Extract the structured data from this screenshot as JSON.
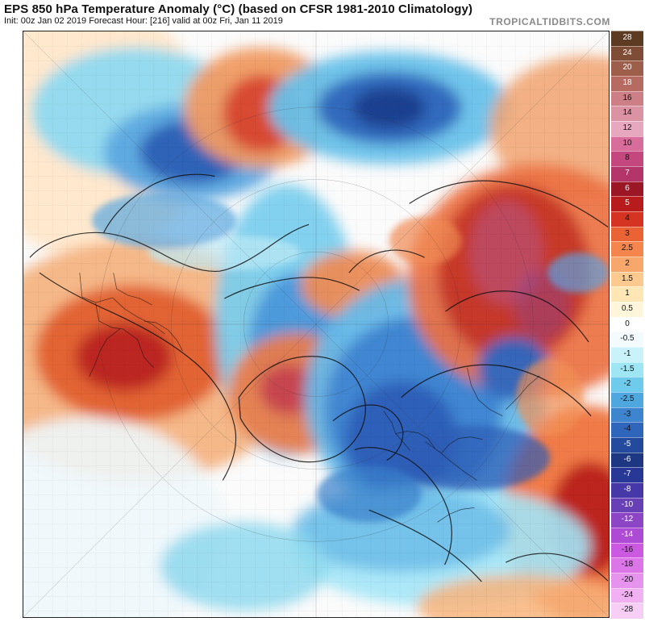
{
  "header": {
    "title": "EPS 850 hPa Temperature Anomaly (°C) (based on CFSR 1981-2010 Climatology)",
    "subtitle": "Init: 00z Jan 02 2019   Forecast Hour: [216]   valid at 00z Fri, Jan 11 2019",
    "watermark": "TROPICALTIDBITS.COM"
  },
  "legend": {
    "unit": "°C",
    "items": [
      {
        "label": "28",
        "color": "#5d3a22"
      },
      {
        "label": "24",
        "color": "#7f4d35"
      },
      {
        "label": "20",
        "color": "#9d5f4b"
      },
      {
        "label": "18",
        "color": "#b66b62"
      },
      {
        "label": "16",
        "color": "#cc7f85"
      },
      {
        "label": "14",
        "color": "#db93a4"
      },
      {
        "label": "12",
        "color": "#e7a8bf"
      },
      {
        "label": "10",
        "color": "#d86d9b"
      },
      {
        "label": "8",
        "color": "#c4487d"
      },
      {
        "label": "7",
        "color": "#b3356a"
      },
      {
        "label": "6",
        "color": "#9b1725"
      },
      {
        "label": "5",
        "color": "#b71b1c"
      },
      {
        "label": "4",
        "color": "#d53423"
      },
      {
        "label": "3",
        "color": "#ea6334"
      },
      {
        "label": "2.5",
        "color": "#f3854d"
      },
      {
        "label": "2",
        "color": "#f7a76c"
      },
      {
        "label": "1.5",
        "color": "#fcc98f"
      },
      {
        "label": "1",
        "color": "#ffe7b5"
      },
      {
        "label": "0.5",
        "color": "#fff6dc"
      },
      {
        "label": "0",
        "color": "#ffffff"
      },
      {
        "label": "-0.5",
        "color": "#f3fbff"
      },
      {
        "label": "-1",
        "color": "#c9f2fa"
      },
      {
        "label": "-1.5",
        "color": "#9ee6f4"
      },
      {
        "label": "-2",
        "color": "#6fcbec"
      },
      {
        "label": "-2.5",
        "color": "#4ea8df"
      },
      {
        "label": "-3",
        "color": "#3d86cf"
      },
      {
        "label": "-4",
        "color": "#2f65bb"
      },
      {
        "label": "-5",
        "color": "#244a9e"
      },
      {
        "label": "-6",
        "color": "#1d3782"
      },
      {
        "label": "-7",
        "color": "#283897"
      },
      {
        "label": "-8",
        "color": "#4638a6"
      },
      {
        "label": "-10",
        "color": "#6840b6"
      },
      {
        "label": "-12",
        "color": "#8b45c5"
      },
      {
        "label": "-14",
        "color": "#ad4bd4"
      },
      {
        "label": "-16",
        "color": "#cb5ae0"
      },
      {
        "label": "-18",
        "color": "#dc76e8"
      },
      {
        "label": "-20",
        "color": "#e693ee"
      },
      {
        "label": "-24",
        "color": "#f0b0f2"
      },
      {
        "label": "-28",
        "color": "#f7cff6"
      }
    ]
  }
}
